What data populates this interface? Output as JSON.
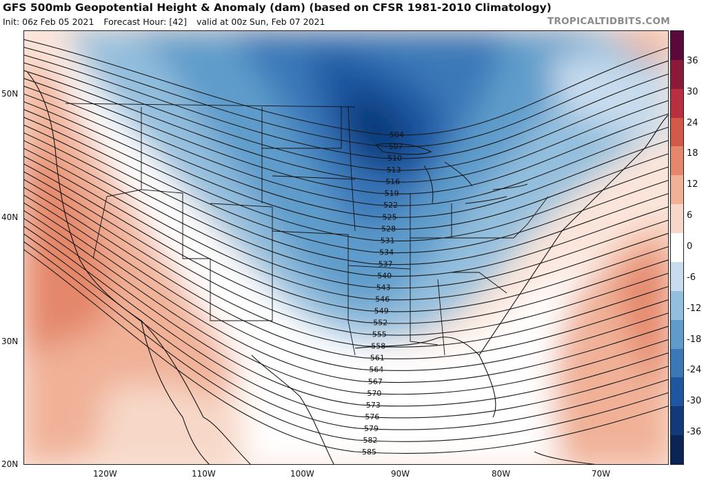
{
  "header": {
    "title": "GFS 500mb Geopotential Height & Anomaly (dam) (based on CFSR 1981-2010 Climatology)",
    "init": "Init: 06z Feb 05 2021",
    "forecast_hour": "Forecast Hour: [42]",
    "valid": "valid at 00z Sun, Feb 07 2021",
    "brand": "TROPICALTIDBITS.COM"
  },
  "axes": {
    "latitudes": [
      "50N",
      "40N",
      "30N",
      "20N"
    ],
    "longitudes": [
      "120W",
      "110W",
      "100W",
      "90W",
      "80W",
      "70W"
    ]
  },
  "colorbar": {
    "labels": [
      "36",
      "30",
      "24",
      "18",
      "12",
      "6",
      "0",
      "-6",
      "-12",
      "-18",
      "-24",
      "-30",
      "-36"
    ],
    "colors": [
      "#5a0a3a",
      "#8a1a3a",
      "#b83040",
      "#d35a48",
      "#e4876a",
      "#f0b197",
      "#f7d8c8",
      "#ffffff",
      "#c8dced",
      "#93bedd",
      "#5f9ccb",
      "#3a78b8",
      "#1f56a0",
      "#103a7a",
      "#0a2555"
    ]
  },
  "contours": [
    {
      "label": "504"
    },
    {
      "label": "507"
    },
    {
      "label": "510"
    },
    {
      "label": "513"
    },
    {
      "label": "516"
    },
    {
      "label": "519"
    },
    {
      "label": "522"
    },
    {
      "label": "525"
    },
    {
      "label": "528"
    },
    {
      "label": "531"
    },
    {
      "label": "534"
    },
    {
      "label": "537"
    },
    {
      "label": "540"
    },
    {
      "label": "543"
    },
    {
      "label": "546"
    },
    {
      "label": "549"
    },
    {
      "label": "552"
    },
    {
      "label": "555"
    },
    {
      "label": "558"
    },
    {
      "label": "561"
    },
    {
      "label": "564"
    },
    {
      "label": "567"
    },
    {
      "label": "570"
    },
    {
      "label": "573"
    },
    {
      "label": "576"
    },
    {
      "label": "579"
    },
    {
      "label": "582"
    },
    {
      "label": "585"
    }
  ]
}
